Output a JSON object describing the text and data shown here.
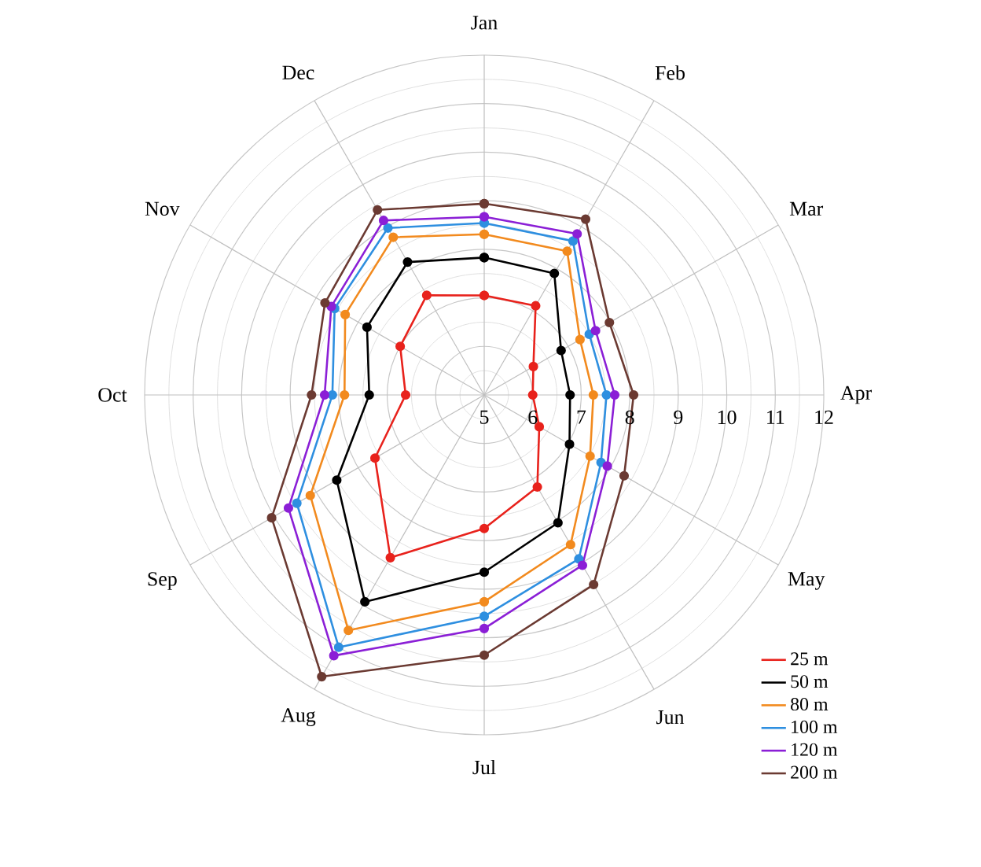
{
  "chart_data": {
    "type": "radar",
    "categories": [
      "Jan",
      "Feb",
      "Mar",
      "Apr",
      "May",
      "Jun",
      "Jul",
      "Aug",
      "Sep",
      "Oct",
      "Nov",
      "Dec"
    ],
    "ylim": [
      5,
      12
    ],
    "yticks": [
      5,
      6,
      7,
      8,
      9,
      10,
      11,
      12
    ],
    "grid": true,
    "legend": "bottom right",
    "marker": "circle",
    "line_style": "solid",
    "series": [
      {
        "name": "25 m",
        "color": "#e8221c",
        "values": [
          7.05,
          7.12,
          6.17,
          6.0,
          6.31,
          7.19,
          7.75,
          8.87,
          7.6,
          6.62,
          7.0,
          7.37
        ]
      },
      {
        "name": "50 m",
        "color": "#000000",
        "values": [
          7.83,
          7.89,
          6.83,
          6.77,
          7.03,
          8.04,
          8.65,
          9.92,
          8.51,
          7.37,
          7.79,
          8.16
        ]
      },
      {
        "name": "80 m",
        "color": "#f28a1e",
        "values": [
          8.31,
          8.42,
          7.28,
          7.25,
          7.52,
          8.56,
          9.26,
          10.6,
          9.14,
          7.88,
          8.31,
          8.75
        ]
      },
      {
        "name": "100 m",
        "color": "#2e8fe0",
        "values": [
          8.54,
          8.66,
          7.5,
          7.52,
          7.78,
          8.9,
          9.56,
          11.0,
          9.46,
          8.13,
          8.56,
          8.97
        ]
      },
      {
        "name": "120 m",
        "color": "#8b1fd6",
        "values": [
          8.67,
          8.83,
          7.65,
          7.69,
          7.93,
          9.05,
          9.81,
          11.2,
          9.66,
          8.29,
          8.64,
          9.15
        ]
      },
      {
        "name": "200 m",
        "color": "#6b3a32",
        "values": [
          8.94,
          9.18,
          7.98,
          8.08,
          8.33,
          9.51,
          10.36,
          11.7,
          10.06,
          8.56,
          8.79,
          9.4
        ]
      }
    ]
  }
}
